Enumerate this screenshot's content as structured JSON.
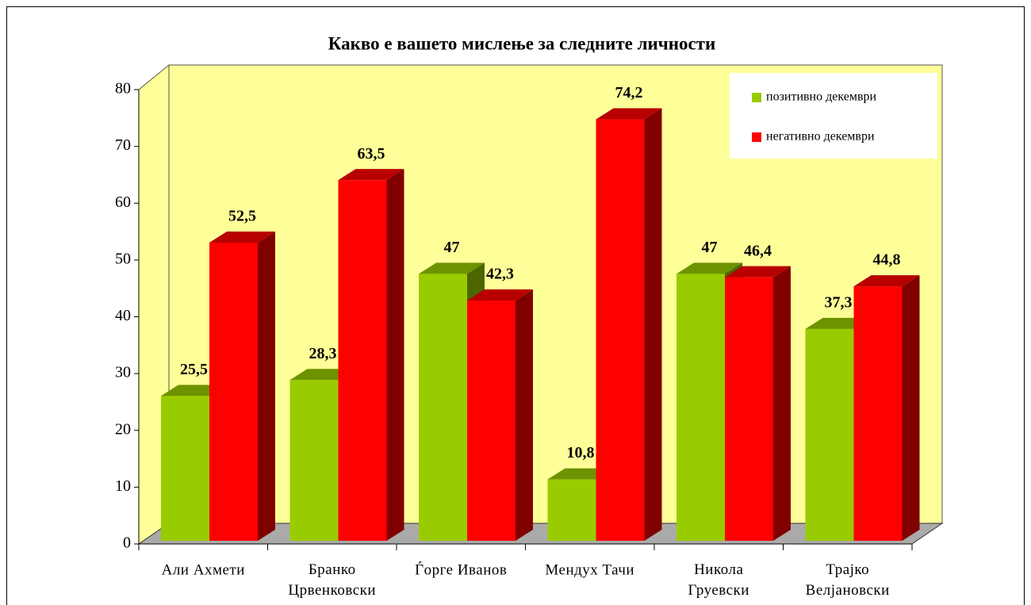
{
  "chart_data": {
    "type": "bar3d",
    "title": "Какво е вашето мислење за следните личности",
    "categories": [
      "Али Ахмети",
      "Бранко Црвенковски",
      "Ѓорге Иванов",
      "Мендух Тачи",
      "Никола Груевски",
      "Трајко Велјановски"
    ],
    "series": [
      {
        "name": "позитивно декември",
        "color": "#99cc00",
        "values": [
          25.5,
          28.3,
          47,
          10.8,
          47,
          37.3
        ],
        "value_labels": [
          "25,5",
          "28,3",
          "47",
          "10,8",
          "47",
          "37,3"
        ]
      },
      {
        "name": "негативно декември",
        "color": "#ff0000",
        "values": [
          52.5,
          63.5,
          42.3,
          74.2,
          46.4,
          44.8
        ],
        "value_labels": [
          "52,5",
          "63,5",
          "42,3",
          "74,2",
          "46,4",
          "44,8"
        ]
      }
    ],
    "ylim": [
      0,
      80
    ],
    "yticks": [
      0,
      10,
      20,
      30,
      40,
      50,
      60,
      70,
      80
    ],
    "legend": "top-right"
  }
}
